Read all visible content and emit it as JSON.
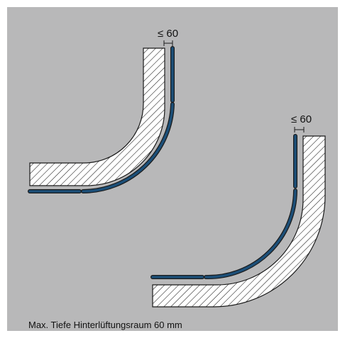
{
  "diagram": {
    "dimension_top": "≤ 60",
    "dimension_bottom": "≤ 60",
    "caption": "Max. Tiefe Hinterlüftungsraum 60 mm"
  },
  "colors": {
    "background": "#b8b8b9",
    "hatch_fill": "#ffffff",
    "hatch_lines": "#1a1a1a",
    "cladding_panel": "#1c4f78",
    "outline": "#1a1a1a"
  }
}
